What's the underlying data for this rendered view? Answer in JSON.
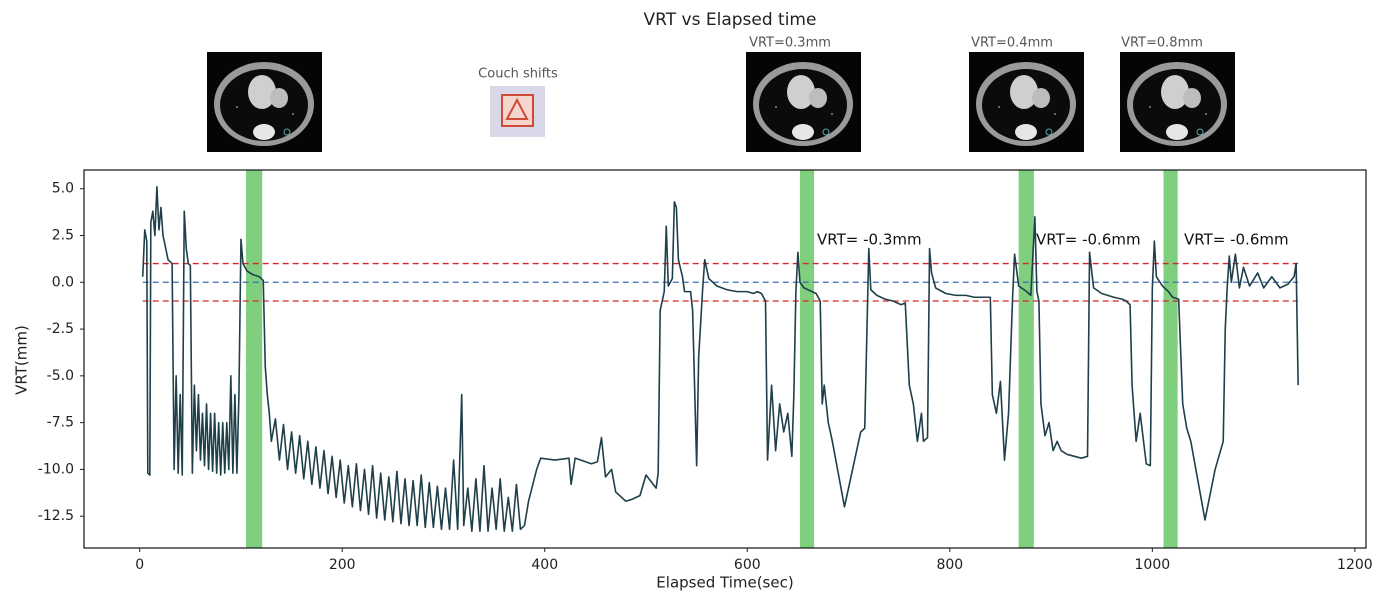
{
  "chart_data": {
    "type": "line",
    "title": "VRT vs Elapsed time",
    "xlabel": "Elapsed Time(sec)",
    "ylabel": "VRT(mm)",
    "xlim": [
      -55,
      1211
    ],
    "ylim": [
      -14.2,
      6.0
    ],
    "xticks": [
      0,
      200,
      400,
      600,
      800,
      1000,
      1200
    ],
    "yticks": [
      {
        "value": 5,
        "label": "5.0"
      },
      2.5,
      {
        "value": 0,
        "label": "0.0"
      },
      -2.5,
      {
        "value": -5,
        "label": "-5.0"
      },
      -7.5,
      {
        "value": -10,
        "label": "-10.0"
      },
      -12.5
    ],
    "color": "#1f3f4a",
    "x": [
      3,
      5,
      7,
      8,
      10,
      11,
      13,
      15,
      17,
      19,
      21,
      23,
      25,
      28,
      32,
      34,
      36,
      38,
      40,
      42,
      44,
      46,
      48,
      50,
      52,
      54,
      56,
      58,
      60,
      62,
      64,
      66,
      68,
      70,
      72,
      74,
      76,
      78,
      80,
      82,
      84,
      86,
      88,
      90,
      92,
      94,
      96,
      98,
      100,
      102,
      106,
      112,
      118,
      122,
      124,
      126,
      128,
      130,
      134,
      138,
      142,
      146,
      150,
      154,
      158,
      162,
      166,
      170,
      174,
      178,
      182,
      186,
      190,
      194,
      198,
      202,
      206,
      210,
      214,
      218,
      222,
      226,
      230,
      234,
      238,
      242,
      246,
      250,
      254,
      258,
      262,
      266,
      270,
      274,
      278,
      282,
      286,
      290,
      294,
      298,
      302,
      306,
      310,
      314,
      318,
      320,
      324,
      328,
      332,
      336,
      340,
      344,
      348,
      352,
      356,
      360,
      364,
      368,
      372,
      376,
      380,
      384,
      392,
      396,
      410,
      424,
      426,
      430,
      446,
      452,
      456,
      460,
      466,
      470,
      480,
      486,
      494,
      500,
      510,
      512,
      514,
      518,
      520,
      522,
      526,
      528,
      530,
      532,
      536,
      538,
      544,
      546,
      550,
      552,
      556,
      558,
      562,
      570,
      580,
      590,
      600,
      606,
      610,
      614,
      618,
      620,
      624,
      628,
      632,
      636,
      640,
      644,
      646,
      648,
      650,
      652,
      656,
      664,
      668,
      672,
      674,
      676,
      680,
      684,
      696,
      712,
      716,
      720,
      722,
      728,
      736,
      744,
      752,
      756,
      760,
      764,
      768,
      772,
      774,
      778,
      780,
      782,
      786,
      796,
      806,
      816,
      824,
      834,
      840,
      842,
      846,
      850,
      854,
      858,
      862,
      864,
      868,
      876,
      880,
      884,
      886,
      888,
      890,
      894,
      898,
      902,
      906,
      910,
      916,
      930,
      936,
      938,
      942,
      950,
      962,
      970,
      974,
      978,
      980,
      984,
      988,
      994,
      998,
      1000,
      1002,
      1004,
      1010,
      1016,
      1020,
      1026,
      1030,
      1034,
      1038,
      1052,
      1062,
      1070,
      1072,
      1074,
      1076,
      1078,
      1082,
      1086,
      1090,
      1096,
      1104,
      1110,
      1118,
      1126,
      1134,
      1140,
      1142,
      1144
    ],
    "values": [
      0.3,
      2.8,
      2.2,
      -10.2,
      -10.3,
      3.2,
      3.8,
      2.5,
      5.1,
      2.8,
      4.0,
      2.5,
      2.0,
      1.2,
      1.0,
      -10.0,
      -5.0,
      -10.2,
      -6,
      -10.3,
      3.8,
      1.8,
      1.0,
      0.9,
      -10.2,
      -5.5,
      -9.0,
      -6.0,
      -9.5,
      -7.0,
      -9.8,
      -6.5,
      -10.0,
      -7.0,
      -10.1,
      -7,
      -10.2,
      -7.5,
      -10.3,
      -7.5,
      -10.2,
      -7.5,
      -10.0,
      -5.0,
      -10.2,
      -6.0,
      -10.2,
      -6.0,
      2.3,
      1.0,
      0.6,
      0.4,
      0.3,
      0.1,
      -4.5,
      -6.0,
      -7.0,
      -8.5,
      -7.3,
      -9.5,
      -7.6,
      -10.0,
      -8.0,
      -10.2,
      -8.2,
      -10.5,
      -8.5,
      -10.8,
      -8.8,
      -11.0,
      -9.0,
      -11.3,
      -9.3,
      -11.5,
      -9.5,
      -11.8,
      -9.8,
      -12.0,
      -9.7,
      -12.2,
      -10.0,
      -12.4,
      -9.8,
      -12.6,
      -10.2,
      -12.7,
      -10.4,
      -12.8,
      -10.1,
      -12.9,
      -10.5,
      -13.0,
      -10.6,
      -13.0,
      -10.3,
      -13.1,
      -10.7,
      -13.1,
      -10.9,
      -13.2,
      -11.0,
      -13.2,
      -9.5,
      -13.2,
      -6.0,
      -13.0,
      -11.0,
      -13.3,
      -10.5,
      -13.3,
      -9.8,
      -13.3,
      -11.0,
      -13.2,
      -10.5,
      -13.3,
      -11.5,
      -13.3,
      -10.8,
      -13.2,
      -13.0,
      -11.7,
      -10.0,
      -9.4,
      -9.5,
      -9.4,
      -10.8,
      -9.4,
      -9.7,
      -9.6,
      -8.3,
      -10.4,
      -10.0,
      -11.2,
      -11.7,
      -11.6,
      -11.4,
      -10.3,
      -11.0,
      -10.2,
      -1.5,
      -0.5,
      3.0,
      -0.2,
      0.2,
      4.3,
      4.0,
      1.2,
      0.3,
      -0.5,
      -0.5,
      -1.5,
      -9.8,
      -4.0,
      -0.3,
      1.2,
      0.2,
      -0.2,
      -0.4,
      -0.5,
      -0.5,
      -0.6,
      -0.5,
      -0.6,
      -1.0,
      -9.5,
      -5.5,
      -9.0,
      -6.5,
      -8.0,
      -7.0,
      -9.3,
      -6.0,
      -0.5,
      1.6,
      0.0,
      -0.3,
      -0.5,
      -0.6,
      -1.0,
      -6.5,
      -5.5,
      -7.5,
      -8.5,
      -12.0,
      -8.0,
      -7.8,
      1.8,
      -0.4,
      -0.7,
      -0.9,
      -1.0,
      -1.2,
      -1.1,
      -5.5,
      -6.5,
      -8.5,
      -7.0,
      -8.5,
      -8.3,
      1.8,
      0.5,
      -0.3,
      -0.6,
      -0.7,
      -0.7,
      -0.8,
      -0.8,
      -0.8,
      -6.0,
      -7.0,
      -5.3,
      -9.5,
      -7.0,
      -0.8,
      1.5,
      -0.2,
      -0.5,
      -0.7,
      3.5,
      -0.5,
      -1.0,
      -6.5,
      -8.2,
      -7.5,
      -9.0,
      -8.5,
      -9.0,
      -9.2,
      -9.4,
      -9.3,
      1.6,
      -0.3,
      -0.6,
      -0.8,
      -0.9,
      -1.0,
      -1.2,
      -5.5,
      -8.5,
      -7.0,
      -9.7,
      -9.8,
      -0.3,
      2.2,
      0.3,
      -0.2,
      -0.5,
      -0.8,
      -0.9,
      -6.5,
      -7.8,
      -8.5,
      -12.7,
      -10,
      -8.5,
      -2.5,
      -0.2,
      1.4,
      0.0,
      1.5,
      -0.3,
      0.8,
      -0.2,
      0.5,
      -0.3,
      0.3,
      -0.3,
      -0.1,
      0.3,
      1.0,
      -5.5
    ],
    "hlines": [
      {
        "value": 1.0,
        "color": "#d62728"
      },
      {
        "value": 0,
        "color": "#3b6fb0"
      },
      {
        "value": -1.0,
        "color": "#d62728"
      }
    ],
    "spans": [
      [
        105,
        121
      ],
      [
        652,
        666
      ],
      [
        868,
        883
      ],
      [
        1011,
        1025
      ]
    ],
    "span_color": "#7fcf7f",
    "annotations": [
      "VRT= -0.3mm",
      "VRT= -0.6mm",
      "VRT= -0.6mm"
    ],
    "image_labels": [
      "Couch shifts",
      "VRT=0.3mm",
      "VRT=0.4mm",
      "VRT=0.8mm"
    ]
  }
}
